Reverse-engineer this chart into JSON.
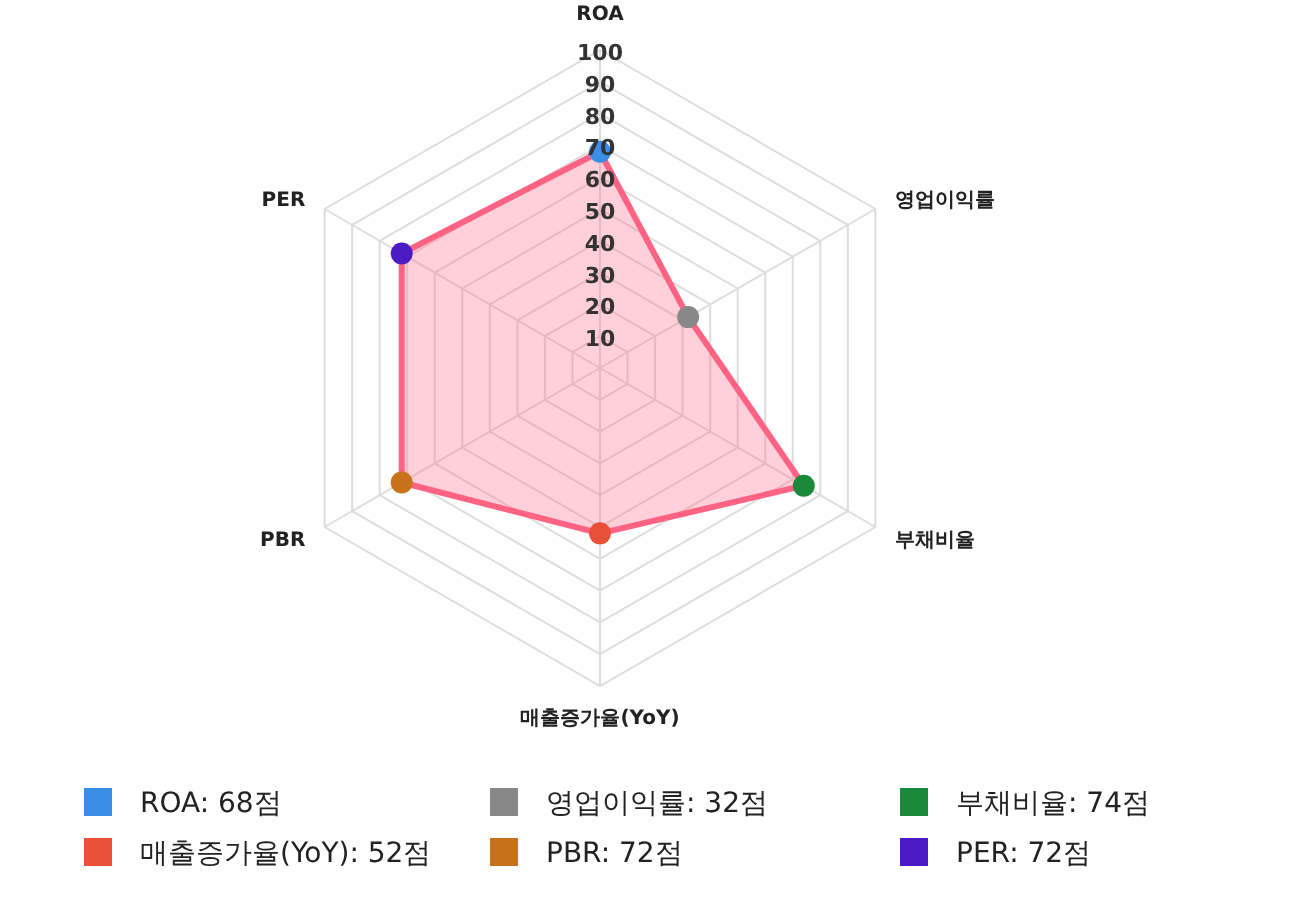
{
  "chart_data": {
    "type": "radar",
    "categories": [
      "ROA",
      "영업이익률",
      "부채비율",
      "매출증가율(YoY)",
      "PBR",
      "PER"
    ],
    "series": [
      {
        "color": "#ff6384",
        "values": [
          68,
          32,
          74,
          52,
          72,
          72
        ]
      }
    ],
    "colors": [
      "#3a8ee6",
      "#888888",
      "#1a8a3a",
      "#e8503a",
      "#c8731a",
      "#4b1bc4"
    ],
    "ylim": [
      0,
      100
    ],
    "yticks": [
      10,
      20,
      30,
      40,
      50,
      60,
      70,
      80,
      90,
      100
    ],
    "grid": true,
    "marker": "circle",
    "annotations": [
      "ROA: 68점",
      "영업이익률: 32점",
      "부채비율: 74점",
      "매출증가율(YoY): 52점",
      "PBR: 72점",
      "PER: 72점"
    ]
  }
}
